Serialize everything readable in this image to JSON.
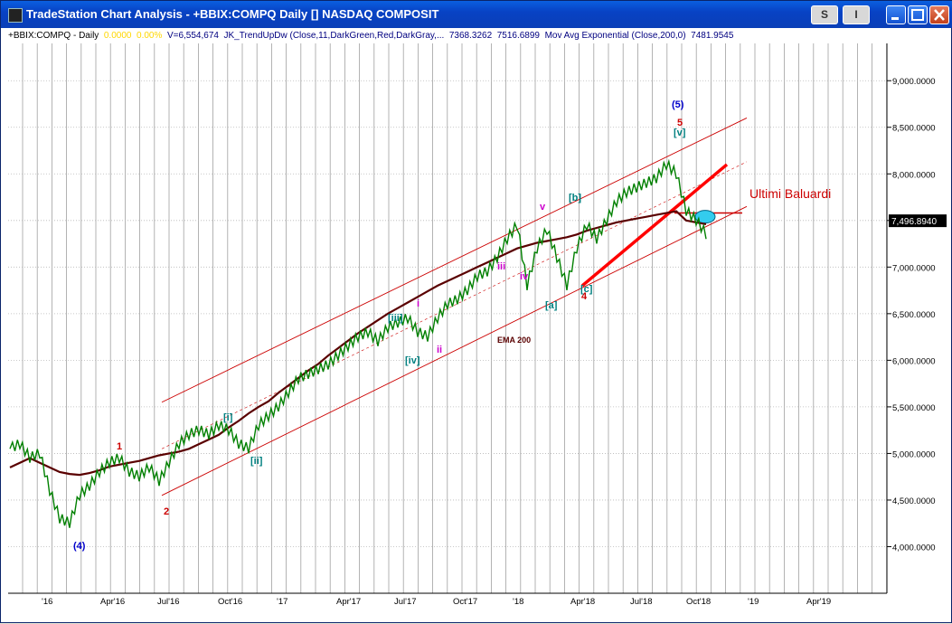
{
  "window": {
    "title": "TradeStation Chart Analysis - +BBIX:COMPQ Daily [] NASDAQ COMPOSIT",
    "buttons": {
      "s": "S",
      "i": "I"
    }
  },
  "status": {
    "symbol": "+BBIX:COMPQ - Daily",
    "change1": "0.0000",
    "change2": "0.00%",
    "volume": "V=6,554,674",
    "indicator": "JK_TrendUpDw (Close,11,DarkGreen,Red,DarkGray,...",
    "ind_val1": "7368.3262",
    "ind_val2": "7516.6899",
    "ma_label": "Mov Avg Exponential (Close,200,0)",
    "ma_val": "7481.9545",
    "colors": {
      "change": "#ffd700",
      "text": "#000080"
    }
  },
  "chart_data": {
    "type": "line",
    "title": "",
    "xlabel": "",
    "ylabel": "",
    "ylim": [
      3500,
      9400
    ],
    "y_ticks": [
      "9,000.0000",
      "8,500.0000",
      "8,000.0000",
      "7,500.0000",
      "7,000.0000",
      "6,500.0000",
      "6,000.0000",
      "5,500.0000",
      "5,000.0000",
      "4,500.0000",
      "4,000.0000"
    ],
    "y_tick_values": [
      9000,
      8500,
      8000,
      7500,
      7000,
      6500,
      6000,
      5500,
      5000,
      4500,
      4000
    ],
    "x_ticks": [
      "'16",
      "Apr'16",
      "Jul'16",
      "Oct'16",
      "'17",
      "Apr'17",
      "Jul'17",
      "Oct'17",
      "'18",
      "Apr'18",
      "Jul'18",
      "Oct'18",
      "'19",
      "Apr'19"
    ],
    "last_price": "7,496.8940",
    "series": [
      {
        "values_note": "",
        "name": "",
        "x": [
          0,
          10,
          20,
          30,
          40,
          50,
          60,
          70,
          80,
          90,
          100,
          110,
          120,
          130,
          140,
          150,
          160,
          170,
          180,
          190,
          200,
          210,
          220,
          230,
          240,
          250,
          260,
          270,
          280,
          290,
          300,
          310,
          320,
          330,
          340,
          350,
          360,
          370,
          380,
          390,
          400,
          410,
          420,
          430,
          440,
          450,
          460,
          470,
          480,
          490,
          500,
          510,
          520,
          530,
          540,
          550,
          560,
          570,
          580,
          590,
          600,
          610,
          620,
          630,
          640,
          650,
          660,
          670,
          680,
          690,
          700
        ],
        "values": [
          5050,
          5100,
          4950,
          5000,
          4600,
          4300,
          4250,
          4550,
          4650,
          4800,
          4900,
          4950,
          4800,
          4750,
          4850,
          4700,
          4900,
          5100,
          5200,
          5250,
          5200,
          5300,
          5250,
          5100,
          5050,
          5300,
          5400,
          5500,
          5650,
          5800,
          5850,
          5900,
          5950,
          6050,
          6150,
          6250,
          6300,
          6200,
          6350,
          6400,
          6450,
          6300,
          6250,
          6450,
          6600,
          6650,
          6750,
          6900,
          6950,
          7100,
          7300,
          7450,
          6800,
          7200,
          7400,
          7100,
          6800,
          7200,
          7450,
          7300,
          7500,
          7700,
          7800,
          7850,
          7900,
          7950,
          8100,
          8000,
          7600,
          7500,
          7350
        ]
      }
    ],
    "ema": {
      "name": "EMA 200",
      "values": [
        4850,
        4900,
        4950,
        4900,
        4850,
        4800,
        4780,
        4770,
        4790,
        4820,
        4860,
        4880,
        4900,
        4920,
        4950,
        4980,
        5000,
        5020,
        5050,
        5100,
        5150,
        5200,
        5280,
        5350,
        5430,
        5500,
        5560,
        5650,
        5730,
        5810,
        5890,
        5960,
        6050,
        6130,
        6210,
        6290,
        6360,
        6430,
        6500,
        6560,
        6620,
        6680,
        6740,
        6800,
        6850,
        6900,
        6950,
        7000,
        7050,
        7100,
        7150,
        7200,
        7230,
        7260,
        7280,
        7300,
        7320,
        7350,
        7390,
        7420,
        7450,
        7480,
        7500,
        7520,
        7540,
        7560,
        7580,
        7600,
        7500,
        7480,
        7460
      ]
    }
  },
  "annotations": {
    "wave_labels": [
      "(4)",
      "(5)",
      "1",
      "2",
      "5",
      "4",
      "[i]",
      "[ii]",
      "[iii]",
      "[iv]",
      "[v]",
      "[a]",
      "[b]",
      "[c]",
      "i",
      "ii",
      "iii",
      "iv",
      "v"
    ],
    "ema_text": "EMA 200",
    "callout": "Ultimi Baluardi"
  }
}
